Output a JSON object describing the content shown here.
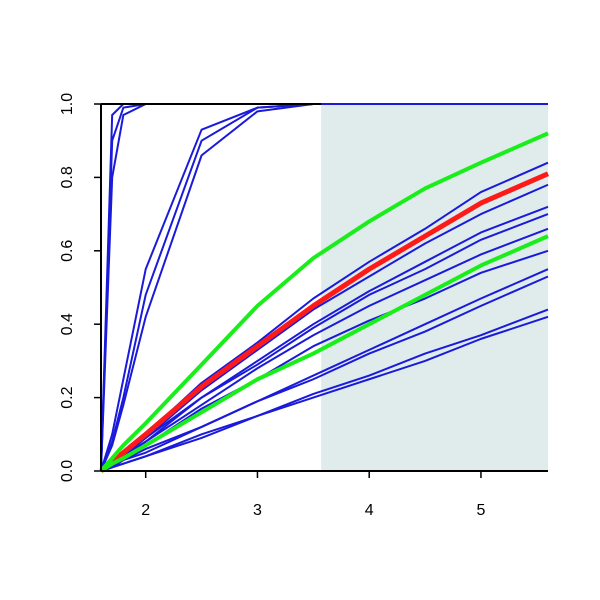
{
  "chart_data": {
    "type": "line",
    "x": [
      1.6,
      1.7,
      1.8,
      2,
      2.5,
      3,
      3.5,
      4,
      4.5,
      5,
      5.6
    ],
    "xlim": [
      1.6,
      5.6
    ],
    "xticks": [
      2,
      3,
      4,
      5
    ],
    "ylim": [
      0,
      1
    ],
    "yticks": [
      {
        "value": 0,
        "label": "0.0"
      },
      0.2,
      0.4,
      0.6,
      0.8,
      {
        "value": 1,
        "label": "1.0"
      }
    ],
    "shade_x": [
      3.57,
      5.6
    ],
    "shade_color": "#dfeceb",
    "series": [
      {
        "color": "#1a1adb",
        "width": 2,
        "values": [
          0,
          0.97,
          1,
          1,
          1,
          1,
          1,
          1,
          1,
          1,
          1
        ]
      },
      {
        "color": "#1a1adb",
        "width": 2,
        "values": [
          0,
          0.9,
          0.99,
          1,
          1,
          1,
          1,
          1,
          1,
          1,
          1
        ]
      },
      {
        "color": "#1a1adb",
        "width": 2,
        "values": [
          0,
          0.8,
          0.97,
          1,
          1,
          1,
          1,
          1,
          1,
          1,
          1
        ]
      },
      {
        "color": "#1a1adb",
        "width": 2,
        "values": [
          0,
          0.1,
          0.25,
          0.55,
          0.93,
          0.99,
          1,
          1,
          1,
          1,
          1
        ]
      },
      {
        "color": "#1a1adb",
        "width": 2,
        "values": [
          0,
          0.08,
          0.2,
          0.48,
          0.9,
          0.99,
          1,
          1,
          1,
          1,
          1
        ]
      },
      {
        "color": "#1a1adb",
        "width": 2,
        "values": [
          0,
          0.07,
          0.18,
          0.42,
          0.86,
          0.98,
          1,
          1,
          1,
          1,
          1
        ]
      },
      {
        "color": "#1a1adb",
        "width": 2,
        "values": [
          0,
          0.03,
          0.05,
          0.1,
          0.24,
          0.35,
          0.47,
          0.57,
          0.66,
          0.76,
          0.84
        ]
      },
      {
        "color": "#1a1adb",
        "width": 2,
        "values": [
          0,
          0.02,
          0.05,
          0.09,
          0.22,
          0.33,
          0.44,
          0.53,
          0.62,
          0.7,
          0.78
        ]
      },
      {
        "color": "#1a1adb",
        "width": 2,
        "values": [
          0,
          0.02,
          0.04,
          0.09,
          0.2,
          0.3,
          0.4,
          0.49,
          0.57,
          0.65,
          0.72
        ]
      },
      {
        "color": "#1a1adb",
        "width": 2,
        "values": [
          0,
          0.02,
          0.04,
          0.08,
          0.2,
          0.29,
          0.39,
          0.48,
          0.55,
          0.63,
          0.7
        ]
      },
      {
        "color": "#1a1adb",
        "width": 2,
        "values": [
          0,
          0.02,
          0.04,
          0.08,
          0.18,
          0.28,
          0.37,
          0.45,
          0.52,
          0.59,
          0.66
        ]
      },
      {
        "color": "#1a1adb",
        "width": 2,
        "values": [
          0,
          0.02,
          0.04,
          0.07,
          0.17,
          0.25,
          0.34,
          0.41,
          0.47,
          0.54,
          0.6
        ]
      },
      {
        "color": "#1a1adb",
        "width": 2,
        "values": [
          0,
          0.01,
          0.03,
          0.06,
          0.12,
          0.19,
          0.26,
          0.33,
          0.4,
          0.47,
          0.55
        ]
      },
      {
        "color": "#1a1adb",
        "width": 2,
        "values": [
          0,
          0.01,
          0.03,
          0.05,
          0.12,
          0.19,
          0.25,
          0.32,
          0.38,
          0.45,
          0.53
        ]
      },
      {
        "color": "#1a1adb",
        "width": 2,
        "values": [
          0,
          0.01,
          0.02,
          0.04,
          0.1,
          0.15,
          0.21,
          0.26,
          0.32,
          0.37,
          0.44
        ]
      },
      {
        "color": "#1a1adb",
        "width": 2,
        "values": [
          0,
          0.01,
          0.02,
          0.04,
          0.09,
          0.15,
          0.2,
          0.25,
          0.3,
          0.36,
          0.42
        ]
      },
      {
        "color": "#ff1a1a",
        "width": 5,
        "values": [
          0,
          0.025,
          0.05,
          0.1,
          0.23,
          0.34,
          0.45,
          0.55,
          0.64,
          0.73,
          0.81
        ]
      },
      {
        "color": "#1aee1a",
        "width": 4,
        "values": [
          0,
          0.035,
          0.07,
          0.13,
          0.29,
          0.45,
          0.58,
          0.68,
          0.77,
          0.84,
          0.92
        ]
      },
      {
        "color": "#1aee1a",
        "width": 4,
        "values": [
          0,
          0.02,
          0.035,
          0.07,
          0.16,
          0.25,
          0.32,
          0.4,
          0.48,
          0.56,
          0.64
        ]
      }
    ]
  }
}
